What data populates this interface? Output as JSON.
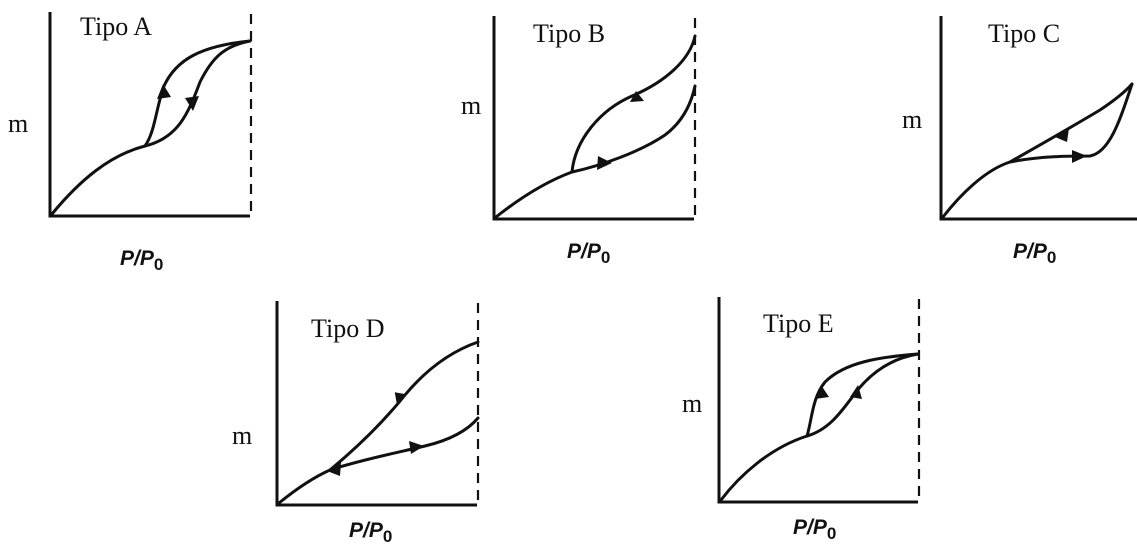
{
  "panels": [
    {
      "id": "a",
      "title": "Tipo A",
      "ylabel": "m",
      "xlabel_main": "P/P",
      "xlabel_sub": "0"
    },
    {
      "id": "b",
      "title": "Tipo B",
      "ylabel": "m",
      "xlabel_main": "P/P",
      "xlabel_sub": "0"
    },
    {
      "id": "c",
      "title": "Tipo C",
      "ylabel": "m",
      "xlabel_main": "P/P",
      "xlabel_sub": "0"
    },
    {
      "id": "d",
      "title": "Tipo D",
      "ylabel": "m",
      "xlabel_main": "P/P",
      "xlabel_sub": "0"
    },
    {
      "id": "e",
      "title": "Tipo E",
      "ylabel": "m",
      "xlabel_main": "P/P",
      "xlabel_sub": "0"
    }
  ]
}
